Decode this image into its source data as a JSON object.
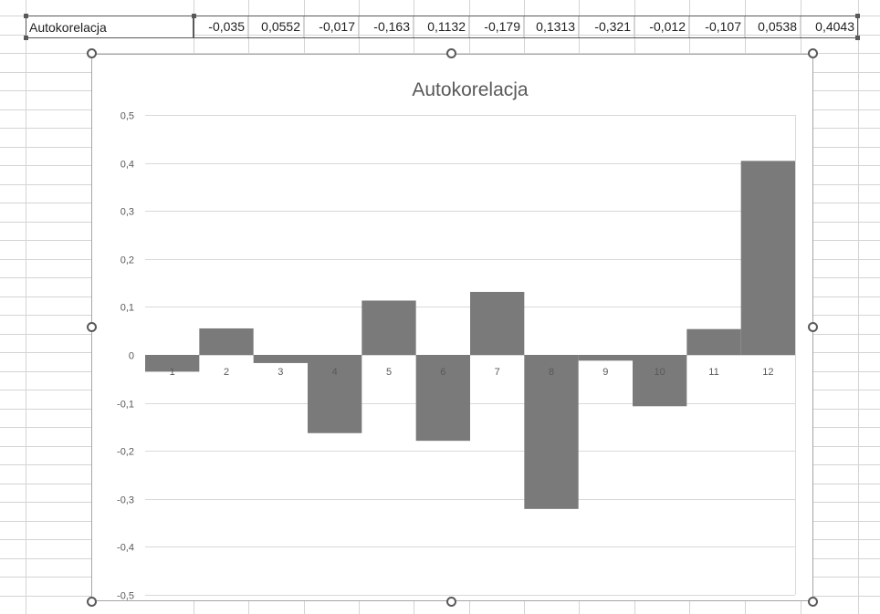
{
  "sheet": {
    "row_label": "Autokorelacja",
    "row_values": [
      "-0,035",
      "0,0552",
      "-0,017",
      "-0,163",
      "0,1132",
      "-0,179",
      "0,1313",
      "-0,321",
      "-0,012",
      "-0,107",
      "0,0538",
      "0,4043"
    ]
  },
  "chart_data": {
    "type": "bar",
    "title": "Autokorelacja",
    "categories": [
      "1",
      "2",
      "3",
      "4",
      "5",
      "6",
      "7",
      "8",
      "9",
      "10",
      "11",
      "12"
    ],
    "values": [
      -0.035,
      0.0552,
      -0.017,
      -0.163,
      0.1132,
      -0.179,
      0.1313,
      -0.321,
      -0.012,
      -0.107,
      0.0538,
      0.4043
    ],
    "ylim": [
      -0.5,
      0.5
    ],
    "yticks": [
      0.5,
      0.4,
      0.3,
      0.2,
      0.1,
      0,
      -0.1,
      -0.2,
      -0.3,
      -0.4,
      -0.5
    ],
    "ytick_labels": [
      "0,5",
      "0,4",
      "0,3",
      "0,2",
      "0,1",
      "0",
      "-0,1",
      "-0,2",
      "-0,3",
      "-0,4",
      "-0,5"
    ],
    "grid": true,
    "legend": "none",
    "bar_color": "#7a7a7a"
  }
}
